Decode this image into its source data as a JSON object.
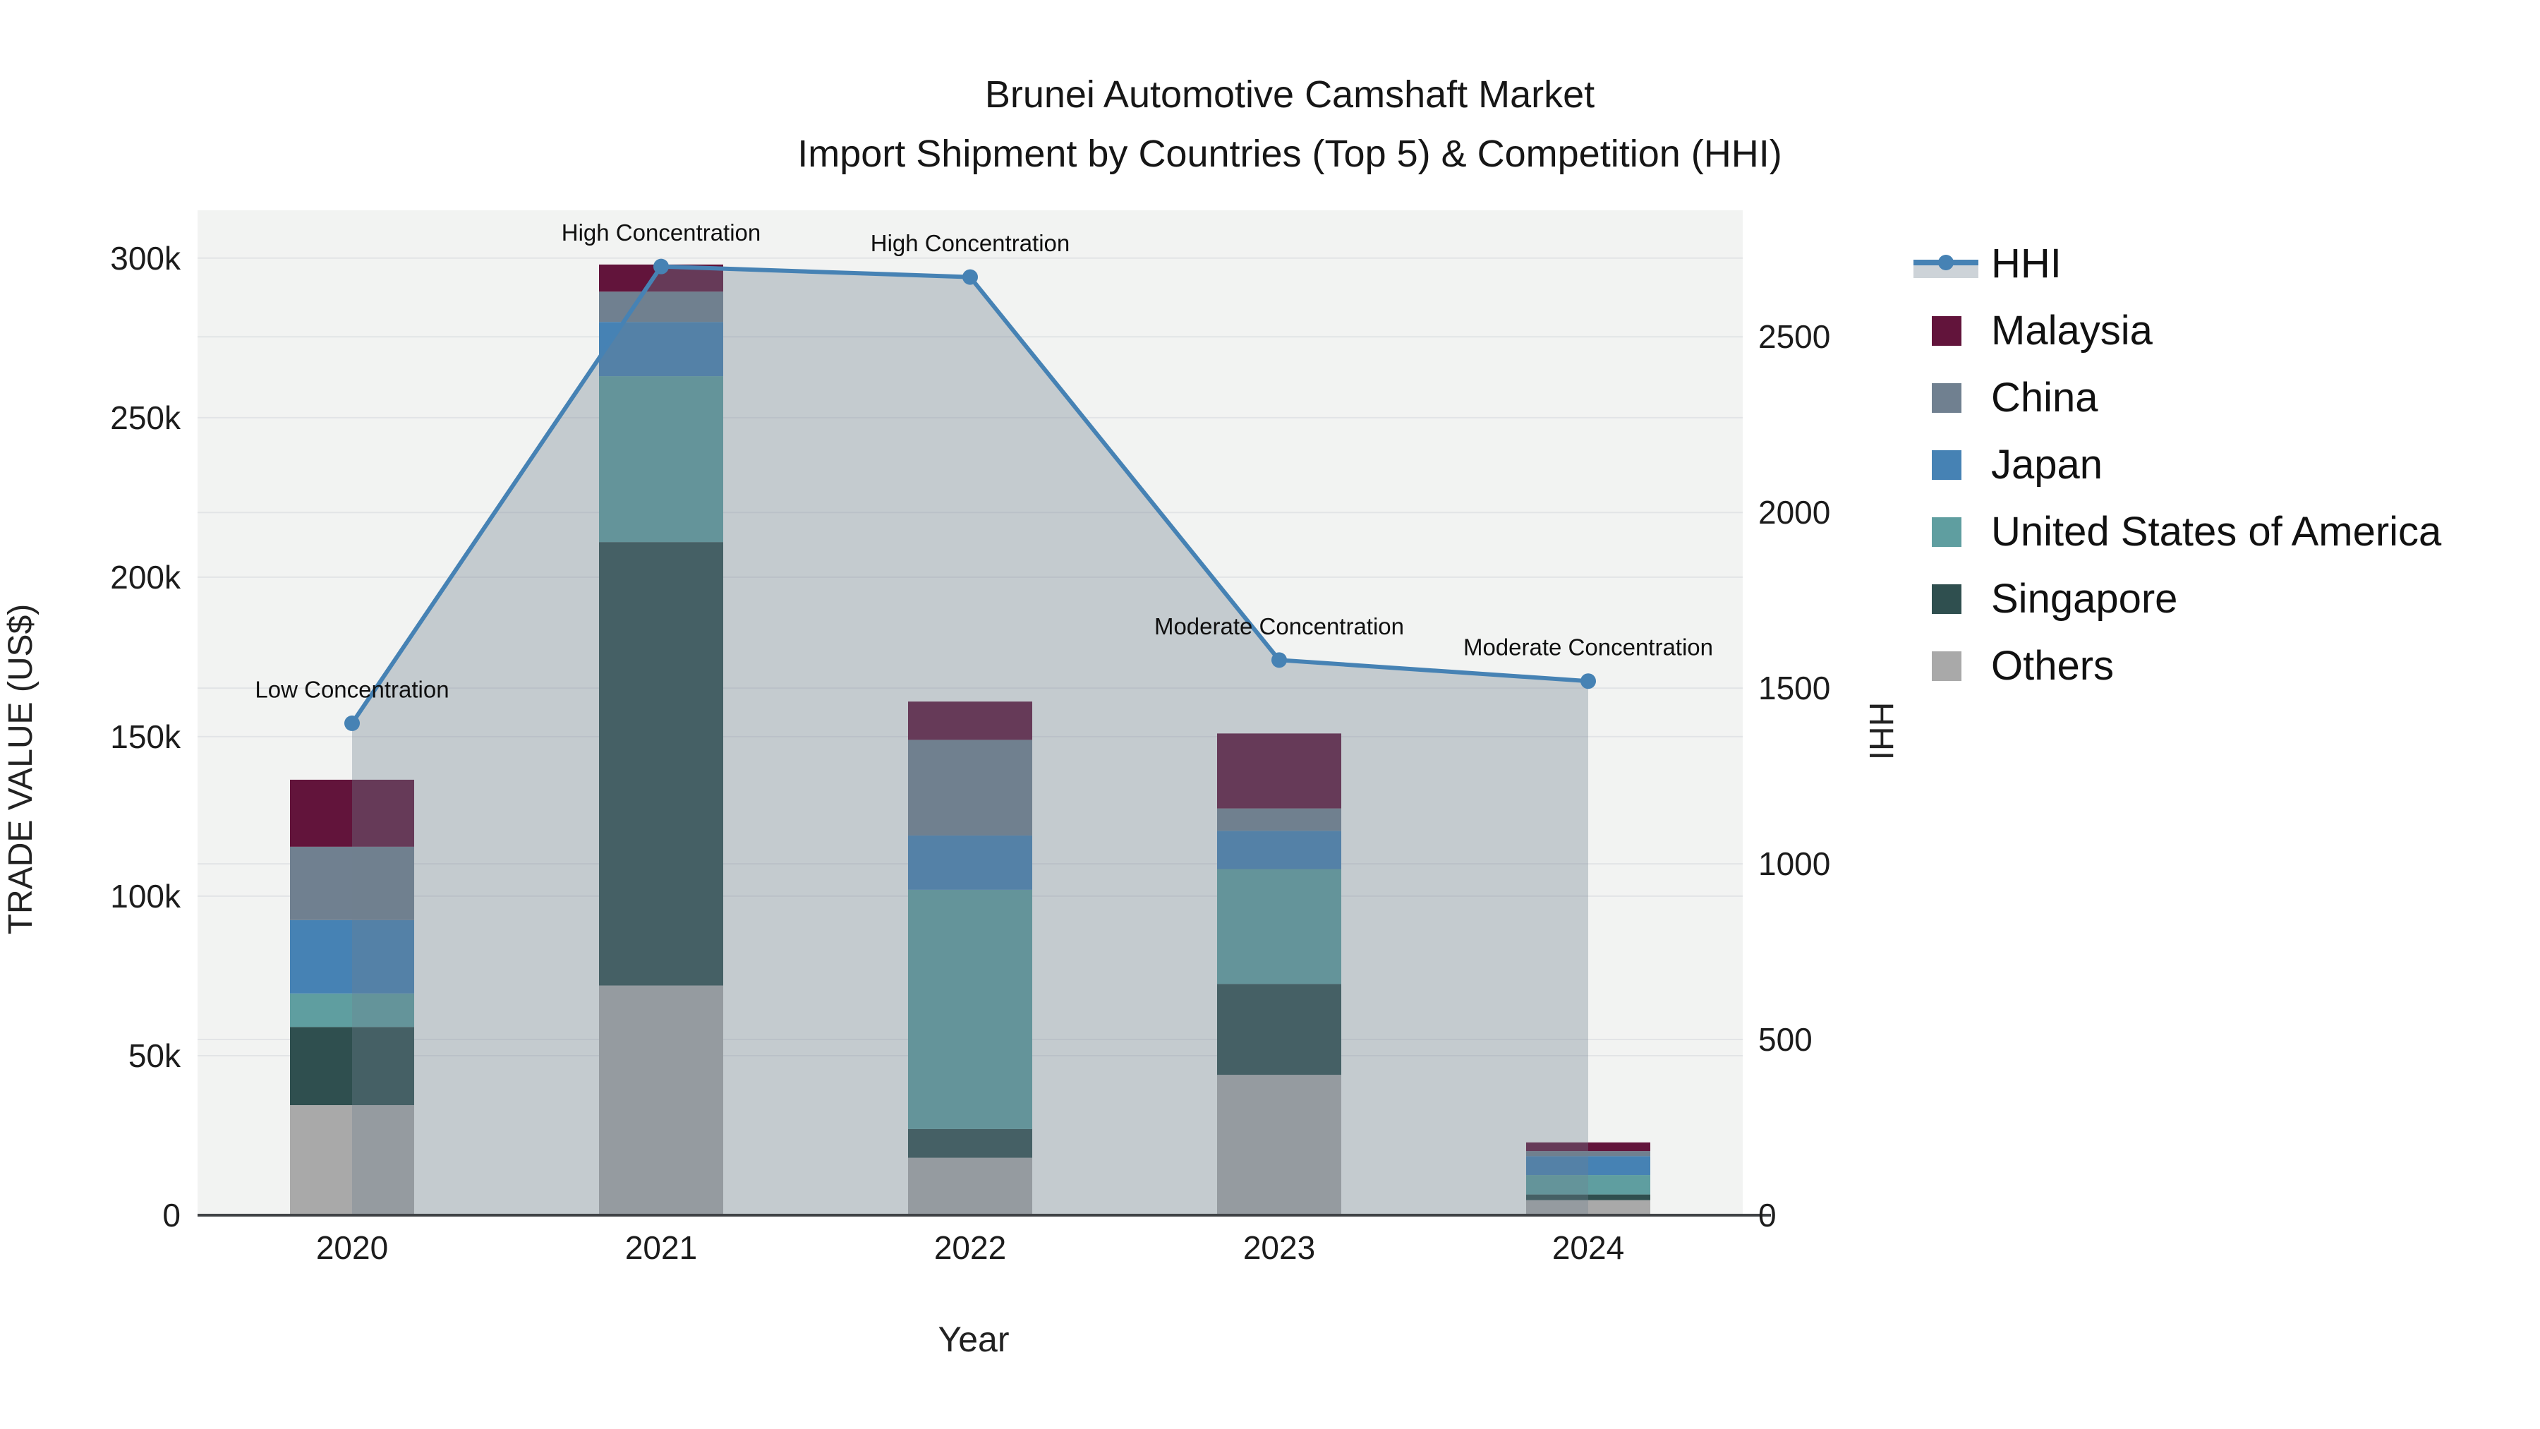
{
  "title": {
    "line1": "Brunei Automotive Camshaft Market",
    "line2": "Import Shipment by Countries (Top 5) & Competition (HHI)"
  },
  "axes": {
    "x_title": "Year",
    "y_title": "TRADE VALUE (US$)",
    "y2_title": "HHI",
    "y_tick_labels": [
      "0",
      "50k",
      "100k",
      "150k",
      "200k",
      "250k",
      "300k"
    ],
    "y_tick_values_k": [
      0,
      50,
      100,
      150,
      200,
      250,
      300
    ],
    "y2_tick_labels": [
      "0",
      "500",
      "1000",
      "1500",
      "2000",
      "2500"
    ],
    "y2_tick_values": [
      0,
      500,
      1000,
      1500,
      2000,
      2500
    ],
    "y_max_k": 315,
    "y2_max": 2860
  },
  "chart_data": {
    "type": "bar+line",
    "title": "Brunei Automotive Camshaft Market — Import Shipment by Countries (Top 5) & Competition (HHI)",
    "xlabel": "Year",
    "ylabel": "TRADE VALUE (US$)",
    "y2label": "HHI",
    "unit": "US$ thousands",
    "categories": [
      "2020",
      "2021",
      "2022",
      "2023",
      "2024"
    ],
    "bar_mode": "stacked",
    "series": [
      {
        "name": "Others",
        "color": "#A9A9A9",
        "values": [
          34.5,
          72,
          18,
          44,
          4.7
        ]
      },
      {
        "name": "Singapore",
        "color": "#2F4F4F",
        "values": [
          24.5,
          139,
          9,
          28.5,
          1.8
        ]
      },
      {
        "name": "United States of America",
        "color": "#5F9EA0",
        "values": [
          10.5,
          52,
          75,
          36,
          6.1
        ]
      },
      {
        "name": "Japan",
        "color": "#4682B4",
        "values": [
          23,
          17,
          17,
          12,
          5.9
        ]
      },
      {
        "name": "China",
        "color": "#708090",
        "values": [
          23,
          9.5,
          30,
          7,
          1.6
        ]
      },
      {
        "name": "Malaysia",
        "color": "#62143B",
        "values": [
          21,
          8.5,
          12,
          23.5,
          2.7
        ]
      }
    ],
    "bar_totals_k": [
      136.5,
      298,
      161,
      151,
      22.8
    ],
    "hhi_line": {
      "name": "HHI",
      "color": "#4682B4",
      "fill_color": "rgba(112,128,144,0.35)",
      "values": [
        1400,
        2700,
        2670,
        1580,
        1520
      ]
    },
    "annotations": [
      {
        "text": "Low Concentration",
        "category": "2020"
      },
      {
        "text": "High Concentration",
        "category": "2021"
      },
      {
        "text": "High Concentration",
        "category": "2022"
      },
      {
        "text": "Moderate Concentration",
        "category": "2023"
      },
      {
        "text": "Moderate Concentration",
        "category": "2024"
      }
    ],
    "legend_position": "right",
    "grid": true
  },
  "legend": {
    "items": [
      {
        "label": "HHI",
        "type": "line",
        "color": "#4682B4",
        "fill": "rgba(112,128,144,0.35)"
      },
      {
        "label": "Malaysia",
        "type": "swatch",
        "color": "#62143B"
      },
      {
        "label": "China",
        "type": "swatch",
        "color": "#708090"
      },
      {
        "label": "Japan",
        "type": "swatch",
        "color": "#4682B4"
      },
      {
        "label": "United States of America",
        "type": "swatch",
        "color": "#5F9EA0"
      },
      {
        "label": "Singapore",
        "type": "swatch",
        "color": "#2F4F4F"
      },
      {
        "label": "Others",
        "type": "swatch",
        "color": "#A9A9A9"
      }
    ]
  },
  "style": {
    "plot_bg": "#f2f3f2",
    "grid_color": "#e2e4e6",
    "axis_line_color": "#3f4245",
    "tick_color": "#1c1c1c",
    "annotation_color": "#101010"
  }
}
